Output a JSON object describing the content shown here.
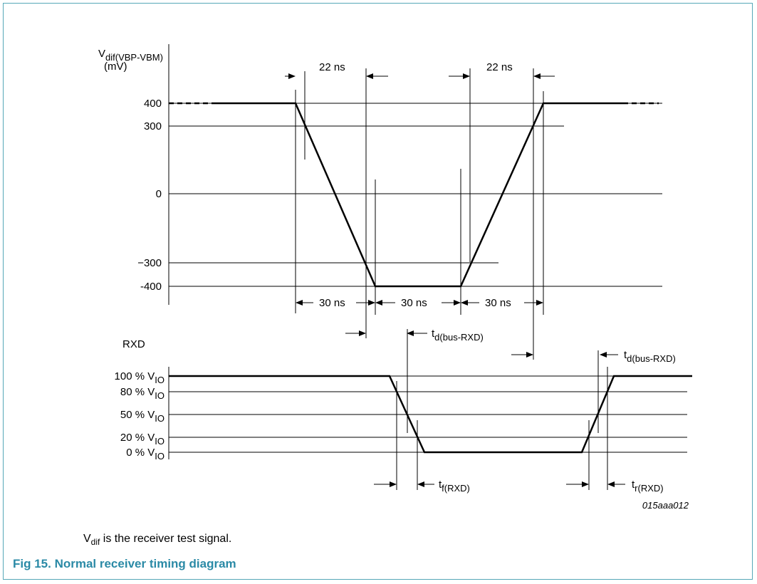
{
  "upper_axis": {
    "label_main": "V",
    "label_sub": "dif(VBP-VBM)",
    "unit": "(mV)",
    "ticks": [
      "400",
      "300",
      "0",
      "−300",
      "-400"
    ]
  },
  "timings": {
    "top_left": "22 ns",
    "top_right": "22 ns",
    "bottom_1": "30 ns",
    "bottom_2": "30 ns",
    "bottom_3": "30 ns"
  },
  "lower_axis": {
    "label": "RXD",
    "ticks": [
      {
        "pct": "100 % V",
        "sub": "IO"
      },
      {
        "pct": "80 % V",
        "sub": "IO"
      },
      {
        "pct": "50 % V",
        "sub": "IO"
      },
      {
        "pct": "20 % V",
        "sub": "IO"
      },
      {
        "pct": "0 % V",
        "sub": "IO"
      }
    ]
  },
  "delays": {
    "td_left": {
      "main": "t",
      "sub": "d(bus-RXD)"
    },
    "td_right": {
      "main": "t",
      "sub": "d(bus-RXD)"
    },
    "tf": {
      "main": "t",
      "sub": "f(RXD)"
    },
    "tr": {
      "main": "t",
      "sub": "r(RXD)"
    }
  },
  "figure_id": "015aaa012",
  "note": {
    "main": "V",
    "sub": "dif",
    "rest": " is the receiver test signal."
  },
  "caption": "Fig 15.  Normal receiver timing diagram",
  "colors": {
    "frame": "#56a8b8",
    "caption": "#2b8aa6"
  }
}
